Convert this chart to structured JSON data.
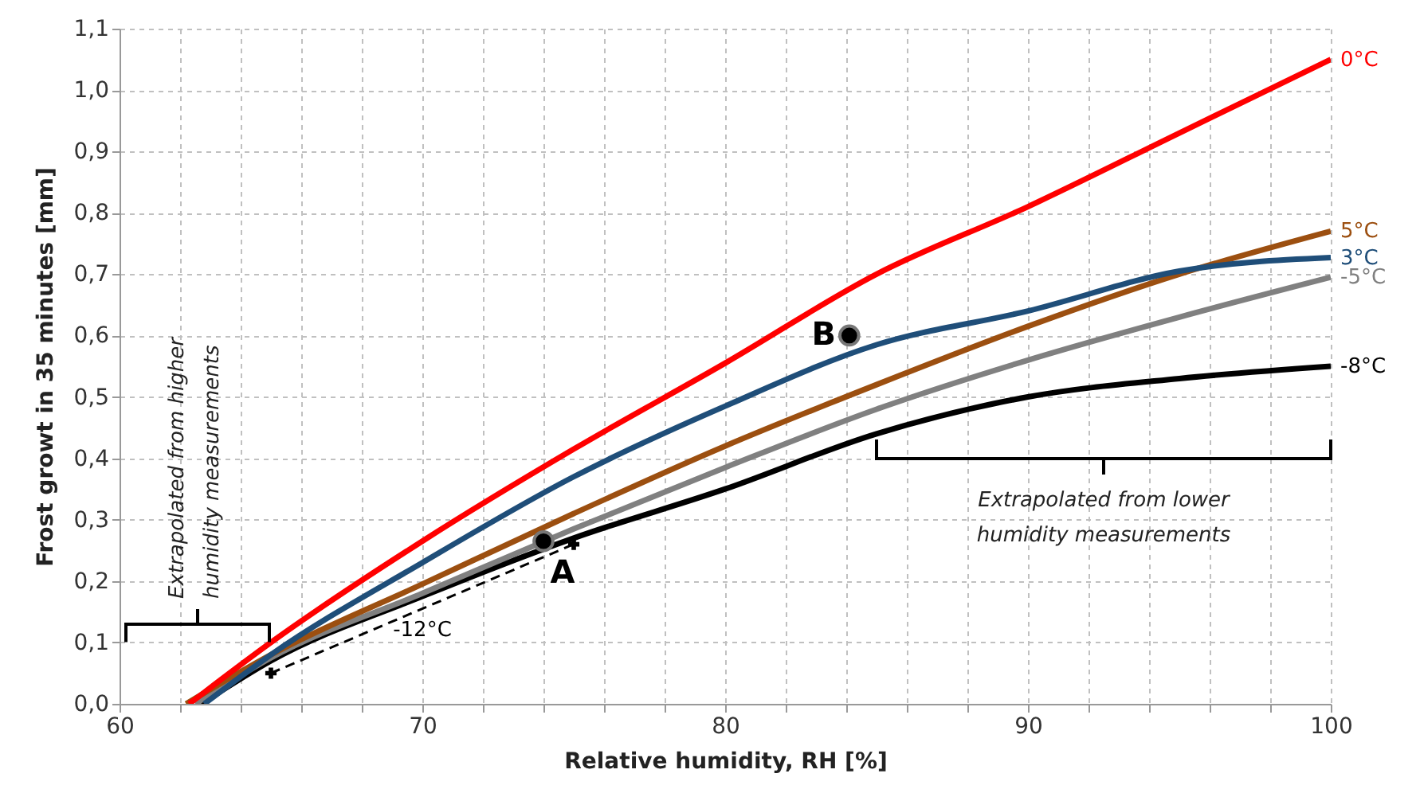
{
  "chart_data": {
    "type": "line",
    "xlabel": "Relative humidity, RH [%]",
    "ylabel": "Frost growt in 35 minutes [mm]",
    "xlim": [
      60,
      100
    ],
    "ylim": [
      0,
      1.1
    ],
    "xticks": [
      60,
      {
        "value": 62,
        "label": null
      },
      {
        "value": 64,
        "label": null
      },
      {
        "value": 66,
        "label": null
      },
      {
        "value": 68,
        "label": null
      },
      70,
      {
        "value": 72,
        "label": null
      },
      {
        "value": 74,
        "label": null
      },
      {
        "value": 76,
        "label": null
      },
      {
        "value": 78,
        "label": null
      },
      80,
      {
        "value": 82,
        "label": null
      },
      {
        "value": 84,
        "label": null
      },
      {
        "value": 86,
        "label": null
      },
      {
        "value": 88,
        "label": null
      },
      90,
      {
        "value": 92,
        "label": null
      },
      {
        "value": 94,
        "label": null
      },
      {
        "value": 96,
        "label": null
      },
      {
        "value": 98,
        "label": null
      },
      100
    ],
    "yticks": [
      {
        "value": 0,
        "label": "0,0"
      },
      {
        "value": 0.1,
        "label": "0,1"
      },
      {
        "value": 0.2,
        "label": "0,2"
      },
      {
        "value": 0.3,
        "label": "0,3"
      },
      {
        "value": 0.4,
        "label": "0,4"
      },
      {
        "value": 0.5,
        "label": "0,5"
      },
      {
        "value": 0.6,
        "label": "0,6"
      },
      {
        "value": 0.7,
        "label": "0,7"
      },
      {
        "value": 0.8,
        "label": "0,8"
      },
      {
        "value": 0.9,
        "label": "0,9"
      },
      {
        "value": 1.0,
        "label": "1,0"
      },
      {
        "value": 1.1,
        "label": "1,1"
      }
    ],
    "grid": true,
    "line_style": "solid",
    "marker": "none",
    "series": [
      {
        "name": "-8°C",
        "color": "#000000",
        "x": [
          62.7,
          65,
          70,
          75,
          80,
          85,
          90,
          95,
          100
        ],
        "values": [
          0,
          0.07,
          0.175,
          0.27,
          0.35,
          0.44,
          0.5,
          0.53,
          0.55
        ]
      },
      {
        "name": "-5°C",
        "color": "#808080",
        "x": [
          62.5,
          65,
          70,
          75,
          80,
          85,
          90,
          95,
          100
        ],
        "values": [
          0,
          0.075,
          0.18,
          0.285,
          0.385,
          0.48,
          0.56,
          0.63,
          0.695
        ]
      },
      {
        "name": "5°C",
        "color": "#9c4f10",
        "x": [
          62.2,
          65,
          70,
          75,
          80,
          85,
          90,
          95,
          100
        ],
        "values": [
          0,
          0.08,
          0.195,
          0.31,
          0.42,
          0.52,
          0.615,
          0.7,
          0.77
        ]
      },
      {
        "name": "3°C",
        "color": "#1f4e79",
        "x": [
          62.8,
          65,
          70,
          75,
          80,
          85,
          90,
          95,
          100
        ],
        "values": [
          0,
          0.08,
          0.23,
          0.37,
          0.485,
          0.585,
          0.64,
          0.705,
          0.727
        ]
      },
      {
        "name": "0°C",
        "color": "#ff0000",
        "x": [
          62.3,
          65,
          70,
          75,
          80,
          85,
          90,
          95,
          100
        ],
        "values": [
          0,
          0.1,
          0.265,
          0.415,
          0.555,
          0.7,
          0.81,
          0.93,
          1.05
        ]
      },
      {
        "name": "-12°C",
        "color": "#000000",
        "x": [
          65,
          75
        ],
        "values": [
          0.05,
          0.26
        ],
        "line_style": "dashed",
        "marker": "cross"
      },
      {
        "type": "scatter",
        "color": "#000000",
        "x": [
          74,
          84.1
        ],
        "values": [
          0.265,
          0.6
        ],
        "marker": "circle"
      }
    ],
    "annotations": [
      {
        "text": "A",
        "x": 74,
        "y": 0.265
      },
      {
        "text": "B",
        "x": 84.1,
        "y": 0.6
      },
      "Extrapolated from higher\nhumidity measurements",
      "Extrapolated from lower\nhumidity measurements"
    ]
  }
}
